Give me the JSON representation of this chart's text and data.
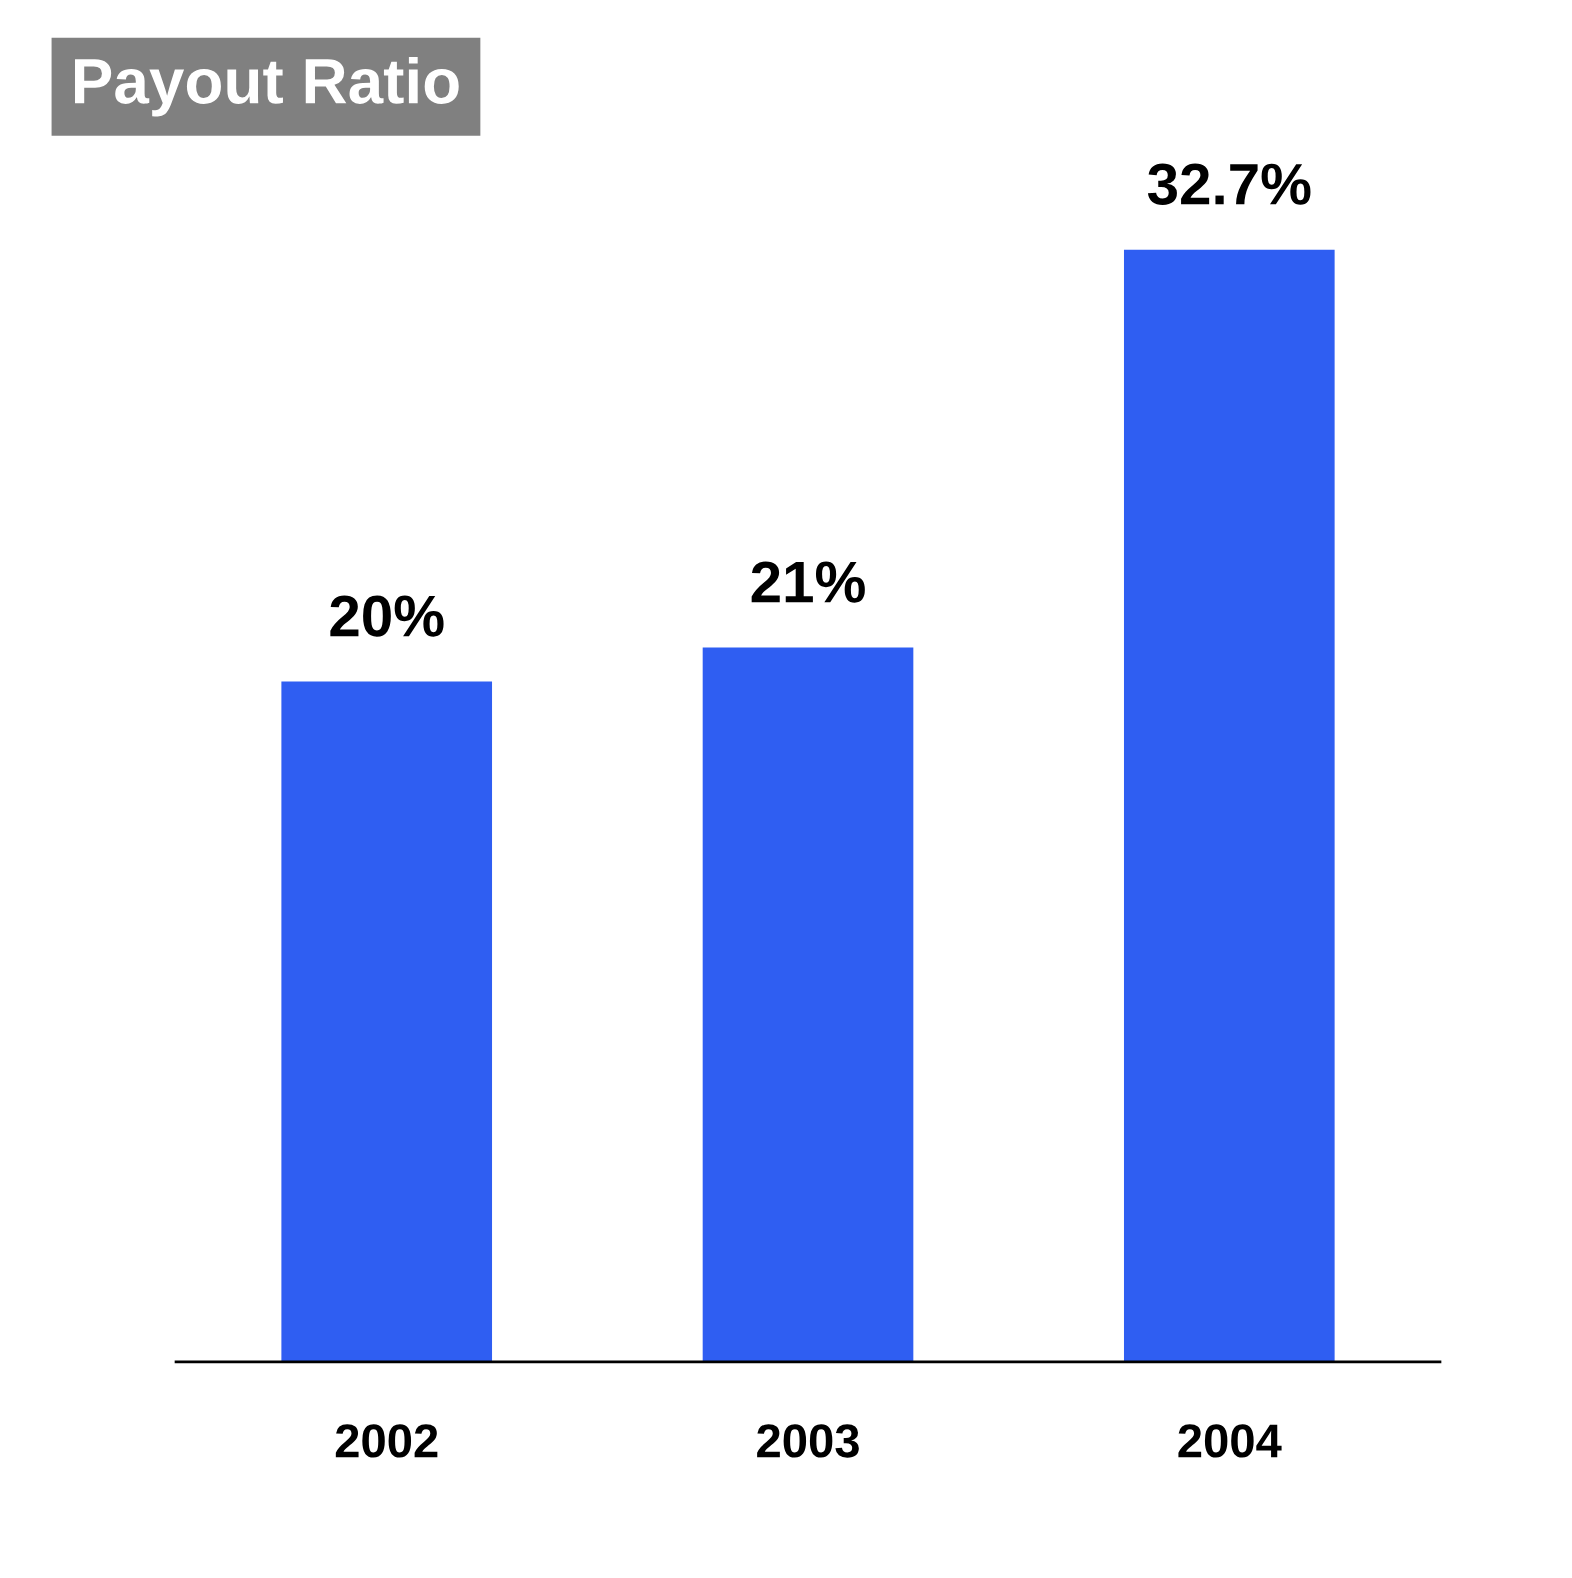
{
  "chart_data": {
    "type": "bar",
    "title": "Payout Ratio",
    "categories": [
      "2002",
      "2003",
      "2004"
    ],
    "values": [
      20,
      21,
      32.7
    ],
    "value_labels": [
      "20%",
      "21%",
      "32.7%"
    ],
    "color": "#2f5ef2",
    "grid": false,
    "legend": false
  }
}
